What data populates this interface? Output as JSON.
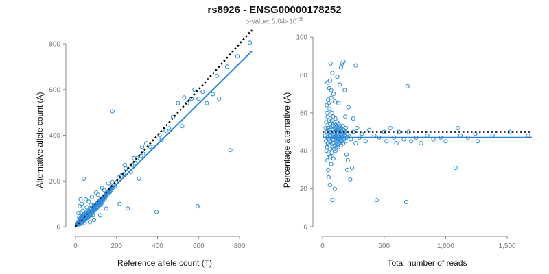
{
  "title": "rs8926 - ENSG00000178252",
  "subtitle": {
    "prefix": "p-value: 5.04×10",
    "exponent": "-68"
  },
  "colors": {
    "points": "#2e8bd4",
    "fit_line": "#2585e0",
    "reference_line": "#000000",
    "axis": "#888888"
  },
  "chart_data": [
    {
      "type": "scatter",
      "xlabel": "Reference allele count (T)",
      "ylabel": "Alternative allele count (A)",
      "xlim": [
        0,
        870
      ],
      "ylim": [
        0,
        830
      ],
      "xticks": [
        0,
        200,
        400,
        600,
        800
      ],
      "yticks": [
        0,
        200,
        400,
        600,
        800
      ],
      "xtick_labels": [
        "0",
        "200",
        "400",
        "600",
        "800"
      ],
      "ytick_labels": [
        "0",
        "200",
        "400",
        "600",
        "800"
      ],
      "reference_line": {
        "style": "dotted",
        "x": [
          0,
          860
        ],
        "y": [
          0,
          860
        ]
      },
      "fit_line": {
        "style": "solid",
        "x": [
          0,
          860
        ],
        "y": [
          8,
          768
        ]
      },
      "points": [
        [
          10,
          12
        ],
        [
          12,
          18
        ],
        [
          14,
          10
        ],
        [
          15,
          22
        ],
        [
          16,
          14
        ],
        [
          18,
          25
        ],
        [
          18,
          16
        ],
        [
          20,
          30
        ],
        [
          20,
          20
        ],
        [
          22,
          12
        ],
        [
          22,
          35
        ],
        [
          24,
          26
        ],
        [
          25,
          18
        ],
        [
          26,
          40
        ],
        [
          27,
          22
        ],
        [
          28,
          30
        ],
        [
          30,
          15
        ],
        [
          30,
          45
        ],
        [
          32,
          28
        ],
        [
          33,
          35
        ],
        [
          35,
          50
        ],
        [
          35,
          25
        ],
        [
          36,
          38
        ],
        [
          38,
          42
        ],
        [
          40,
          30
        ],
        [
          40,
          55
        ],
        [
          42,
          36
        ],
        [
          44,
          48
        ],
        [
          45,
          28
        ],
        [
          46,
          60
        ],
        [
          48,
          40
        ],
        [
          50,
          52
        ],
        [
          50,
          35
        ],
        [
          52,
          45
        ],
        [
          54,
          62
        ],
        [
          55,
          50
        ],
        [
          56,
          38
        ],
        [
          58,
          55
        ],
        [
          60,
          48
        ],
        [
          60,
          70
        ],
        [
          62,
          58
        ],
        [
          64,
          44
        ],
        [
          65,
          66
        ],
        [
          66,
          52
        ],
        [
          68,
          60
        ],
        [
          70,
          75
        ],
        [
          70,
          55
        ],
        [
          72,
          62
        ],
        [
          74,
          68
        ],
        [
          75,
          50
        ],
        [
          76,
          80
        ],
        [
          78,
          65
        ],
        [
          80,
          72
        ],
        [
          80,
          58
        ],
        [
          82,
          85
        ],
        [
          84,
          70
        ],
        [
          85,
          78
        ],
        [
          86,
          62
        ],
        [
          88,
          90
        ],
        [
          90,
          76
        ],
        [
          90,
          82
        ],
        [
          92,
          70
        ],
        [
          94,
          88
        ],
        [
          95,
          95
        ],
        [
          96,
          80
        ],
        [
          98,
          86
        ],
        [
          100,
          92
        ],
        [
          100,
          78
        ],
        [
          102,
          100
        ],
        [
          104,
          88
        ],
        [
          105,
          96
        ],
        [
          106,
          84
        ],
        [
          108,
          104
        ],
        [
          110,
          98
        ],
        [
          110,
          90
        ],
        [
          112,
          108
        ],
        [
          114,
          96
        ],
        [
          115,
          112
        ],
        [
          116,
          102
        ],
        [
          118,
          94
        ],
        [
          120,
          115
        ],
        [
          120,
          106
        ],
        [
          122,
          120
        ],
        [
          124,
          110
        ],
        [
          125,
          100
        ],
        [
          126,
          118
        ],
        [
          128,
          112
        ],
        [
          130,
          124
        ],
        [
          130,
          108
        ],
        [
          132,
          118
        ],
        [
          134,
          128
        ],
        [
          136,
          120
        ],
        [
          138,
          132
        ],
        [
          140,
          126
        ],
        [
          142,
          118
        ],
        [
          144,
          136
        ],
        [
          145,
          130
        ],
        [
          148,
          140
        ],
        [
          150,
          134
        ],
        [
          150,
          145
        ],
        [
          152,
          138
        ],
        [
          155,
          150
        ],
        [
          158,
          144
        ],
        [
          160,
          155
        ],
        [
          162,
          148
        ],
        [
          165,
          160
        ],
        [
          168,
          152
        ],
        [
          170,
          165
        ],
        [
          172,
          158
        ],
        [
          175,
          170
        ],
        [
          178,
          176
        ],
        [
          180,
          168
        ],
        [
          185,
          180
        ],
        [
          190,
          175
        ],
        [
          25,
          120
        ],
        [
          30,
          100
        ],
        [
          20,
          90
        ],
        [
          40,
          210
        ],
        [
          55,
          85
        ],
        [
          60,
          40
        ],
        [
          45,
          15
        ],
        [
          70,
          20
        ],
        [
          90,
          30
        ],
        [
          120,
          50
        ],
        [
          150,
          80
        ],
        [
          35,
          70
        ],
        [
          28,
          58
        ],
        [
          50,
          120
        ],
        [
          65,
          110
        ],
        [
          80,
          130
        ],
        [
          100,
          150
        ],
        [
          110,
          140
        ],
        [
          130,
          170
        ],
        [
          140,
          160
        ],
        [
          160,
          190
        ],
        [
          180,
          195
        ],
        [
          85,
          50
        ],
        [
          75,
          95
        ],
        [
          15,
          60
        ],
        [
          18,
          40
        ],
        [
          180,
          505
        ],
        [
          215,
          100
        ],
        [
          255,
          80
        ],
        [
          240,
          270
        ],
        [
          260,
          250
        ],
        [
          275,
          270
        ],
        [
          290,
          280
        ],
        [
          300,
          300
        ],
        [
          310,
          210
        ],
        [
          325,
          350
        ],
        [
          330,
          320
        ],
        [
          345,
          365
        ],
        [
          365,
          350
        ],
        [
          380,
          350
        ],
        [
          395,
          65
        ],
        [
          410,
          400
        ],
        [
          420,
          380
        ],
        [
          440,
          420
        ],
        [
          455,
          430
        ],
        [
          475,
          480
        ],
        [
          500,
          540
        ],
        [
          520,
          440
        ],
        [
          530,
          565
        ],
        [
          545,
          540
        ],
        [
          565,
          560
        ],
        [
          580,
          600
        ],
        [
          595,
          90
        ],
        [
          600,
          560
        ],
        [
          620,
          590
        ],
        [
          640,
          540
        ],
        [
          670,
          580
        ],
        [
          690,
          660
        ],
        [
          700,
          560
        ],
        [
          740,
          700
        ],
        [
          755,
          335
        ],
        [
          790,
          745
        ],
        [
          850,
          805
        ],
        [
          200,
          195
        ],
        [
          210,
          215
        ],
        [
          225,
          225
        ],
        [
          235,
          230
        ],
        [
          245,
          255
        ],
        [
          270,
          240
        ],
        [
          285,
          300
        ],
        [
          320,
          310
        ]
      ]
    },
    {
      "type": "scatter",
      "xlabel": "Total number of reads",
      "ylabel": "Percentage alternative (A)",
      "xlim": [
        0,
        1700
      ],
      "ylim": [
        0,
        100
      ],
      "xticks": [
        0,
        500,
        1000,
        1500
      ],
      "yticks": [
        0,
        20,
        40,
        60,
        80,
        100
      ],
      "xtick_labels": [
        "0",
        "500",
        "1,000",
        "1,500"
      ],
      "ytick_labels": [
        "0",
        "20",
        "40",
        "60",
        "80",
        "100"
      ],
      "reference_line": {
        "style": "dotted",
        "x": [
          0,
          1700
        ],
        "y": [
          50,
          50
        ]
      },
      "fit_line": {
        "style": "solid",
        "x": [
          0,
          1700
        ],
        "y": [
          47,
          47
        ]
      },
      "points": [
        [
          20,
          48
        ],
        [
          25,
          52
        ],
        [
          28,
          45
        ],
        [
          30,
          55
        ],
        [
          32,
          40
        ],
        [
          35,
          50
        ],
        [
          36,
          60
        ],
        [
          38,
          42
        ],
        [
          40,
          47
        ],
        [
          40,
          35
        ],
        [
          42,
          58
        ],
        [
          44,
          44
        ],
        [
          45,
          52
        ],
        [
          46,
          30
        ],
        [
          48,
          49
        ],
        [
          50,
          65
        ],
        [
          50,
          38
        ],
        [
          52,
          46
        ],
        [
          54,
          56
        ],
        [
          55,
          43
        ],
        [
          56,
          51
        ],
        [
          58,
          62
        ],
        [
          60,
          37
        ],
        [
          60,
          48
        ],
        [
          62,
          54
        ],
        [
          64,
          41
        ],
        [
          65,
          57
        ],
        [
          66,
          45
        ],
        [
          68,
          50
        ],
        [
          70,
          68
        ],
        [
          70,
          33
        ],
        [
          72,
          47
        ],
        [
          74,
          53
        ],
        [
          75,
          39
        ],
        [
          76,
          60
        ],
        [
          78,
          44
        ],
        [
          80,
          49
        ],
        [
          80,
          56
        ],
        [
          82,
          42
        ],
        [
          84,
          51
        ],
        [
          85,
          46
        ],
        [
          86,
          58
        ],
        [
          88,
          36
        ],
        [
          90,
          48
        ],
        [
          90,
          53
        ],
        [
          92,
          44
        ],
        [
          94,
          50
        ],
        [
          95,
          41
        ],
        [
          96,
          55
        ],
        [
          98,
          47
        ],
        [
          100,
          52
        ],
        [
          100,
          43
        ],
        [
          102,
          49
        ],
        [
          104,
          57
        ],
        [
          105,
          40
        ],
        [
          106,
          46
        ],
        [
          108,
          51
        ],
        [
          110,
          44
        ],
        [
          110,
          54
        ],
        [
          112,
          48
        ],
        [
          114,
          42
        ],
        [
          115,
          53
        ],
        [
          116,
          47
        ],
        [
          118,
          50
        ],
        [
          120,
          45
        ],
        [
          120,
          55
        ],
        [
          122,
          49
        ],
        [
          124,
          43
        ],
        [
          125,
          52
        ],
        [
          126,
          47
        ],
        [
          128,
          51
        ],
        [
          130,
          46
        ],
        [
          130,
          42
        ],
        [
          132,
          54
        ],
        [
          134,
          48
        ],
        [
          136,
          44
        ],
        [
          138,
          50
        ],
        [
          140,
          47
        ],
        [
          142,
          53
        ],
        [
          144,
          45
        ],
        [
          145,
          49
        ],
        [
          148,
          51
        ],
        [
          150,
          46
        ],
        [
          150,
          43
        ],
        [
          152,
          52
        ],
        [
          155,
          48
        ],
        [
          158,
          45
        ],
        [
          160,
          50
        ],
        [
          162,
          47
        ],
        [
          165,
          53
        ],
        [
          168,
          44
        ],
        [
          170,
          49
        ],
        [
          172,
          51
        ],
        [
          175,
          46
        ],
        [
          178,
          48
        ],
        [
          180,
          50
        ],
        [
          185,
          45
        ],
        [
          190,
          52
        ],
        [
          195,
          47
        ],
        [
          200,
          49
        ],
        [
          60,
          77
        ],
        [
          65,
          86
        ],
        [
          80,
          81
        ],
        [
          40,
          76
        ],
        [
          55,
          73
        ],
        [
          70,
          72
        ],
        [
          90,
          70
        ],
        [
          100,
          66
        ],
        [
          120,
          79
        ],
        [
          140,
          75
        ],
        [
          150,
          84
        ],
        [
          160,
          86
        ],
        [
          170,
          87
        ],
        [
          130,
          65
        ],
        [
          50,
          26
        ],
        [
          60,
          22
        ],
        [
          80,
          14
        ],
        [
          100,
          20
        ],
        [
          45,
          67
        ],
        [
          35,
          64
        ],
        [
          210,
          48
        ],
        [
          230,
          46
        ],
        [
          250,
          50
        ],
        [
          270,
          44
        ],
        [
          280,
          52
        ],
        [
          300,
          47
        ],
        [
          320,
          49
        ],
        [
          350,
          45
        ],
        [
          380,
          51
        ],
        [
          420,
          48
        ],
        [
          440,
          14
        ],
        [
          460,
          47
        ],
        [
          500,
          50
        ],
        [
          520,
          45
        ],
        [
          550,
          52
        ],
        [
          580,
          47
        ],
        [
          600,
          44
        ],
        [
          620,
          50
        ],
        [
          660,
          46
        ],
        [
          680,
          13
        ],
        [
          690,
          74
        ],
        [
          700,
          50
        ],
        [
          720,
          45
        ],
        [
          760,
          47
        ],
        [
          800,
          44
        ],
        [
          850,
          48
        ],
        [
          900,
          46
        ],
        [
          960,
          47
        ],
        [
          1000,
          45
        ],
        [
          1080,
          31
        ],
        [
          1100,
          52
        ],
        [
          1120,
          48
        ],
        [
          1180,
          47
        ],
        [
          1240,
          49
        ],
        [
          1260,
          45
        ],
        [
          1380,
          48
        ],
        [
          1520,
          50
        ],
        [
          1670,
          48
        ],
        [
          225,
          25
        ],
        [
          240,
          31
        ],
        [
          200,
          30
        ],
        [
          205,
          35
        ],
        [
          195,
          38
        ],
        [
          250,
          57
        ],
        [
          270,
          85
        ],
        [
          180,
          72
        ],
        [
          185,
          58
        ],
        [
          210,
          63
        ]
      ]
    }
  ]
}
